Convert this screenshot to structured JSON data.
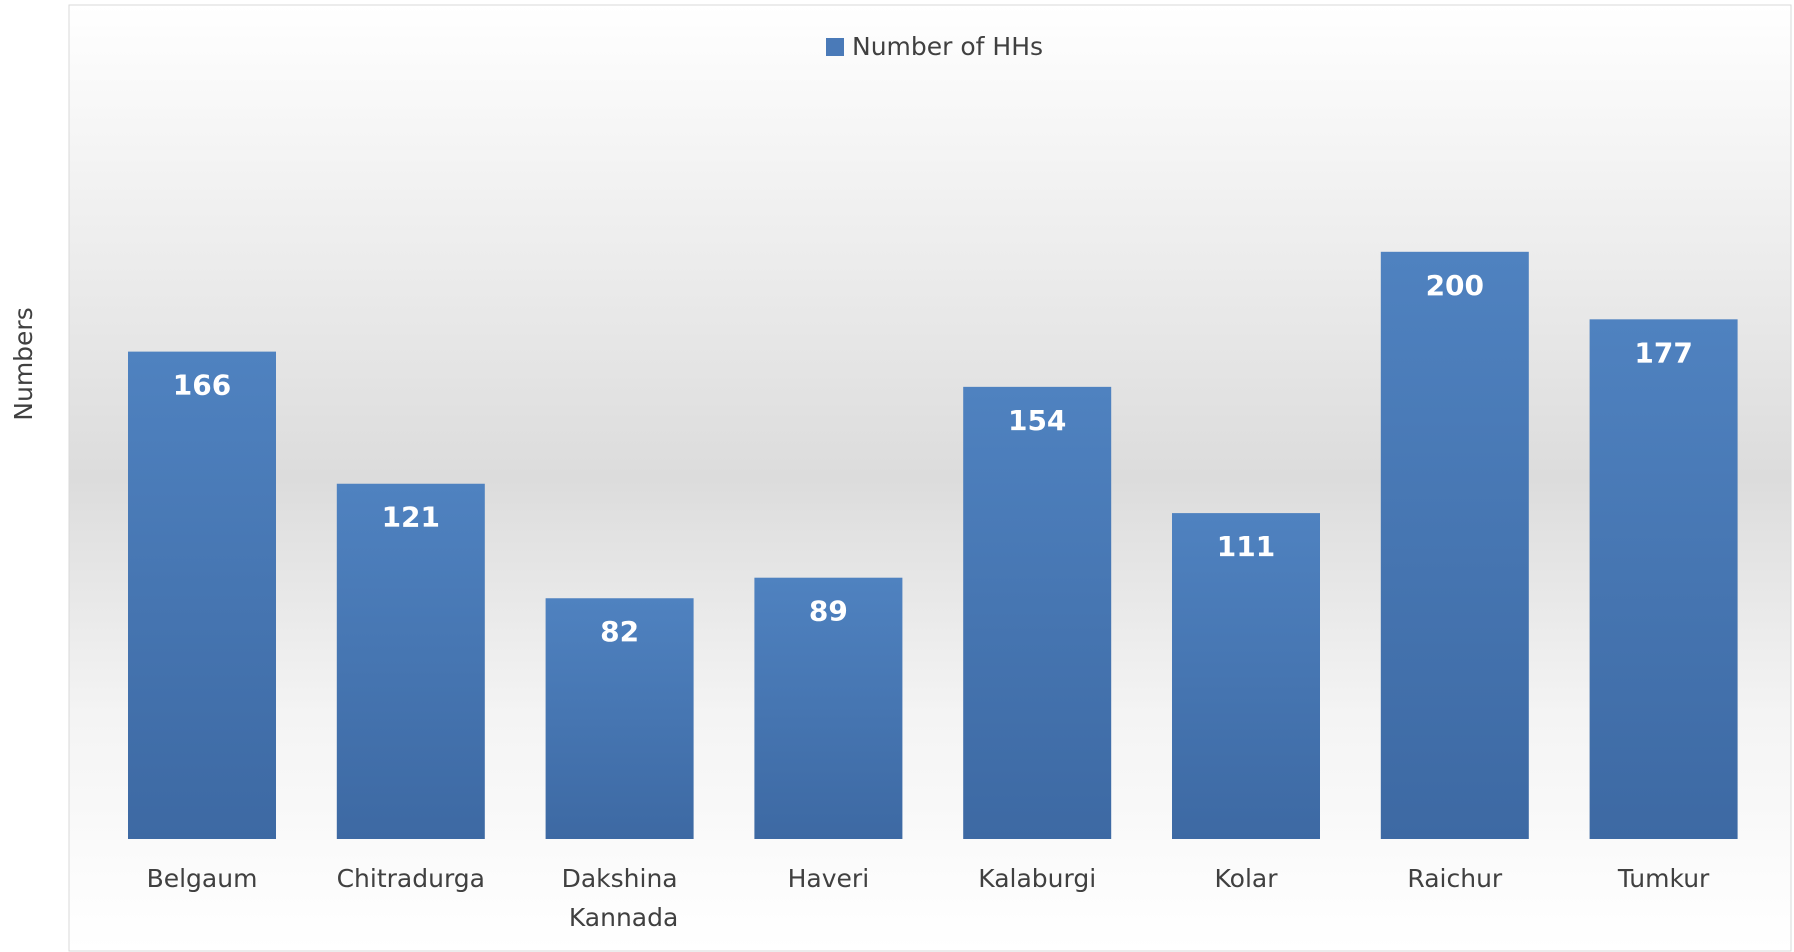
{
  "chart_data": {
    "type": "bar",
    "y_axis_label": "Numbers",
    "categories": [
      "Belgaum",
      "Chitradurga",
      "Dakshina Kannada",
      "Haveri",
      "Kalaburgi",
      "Kolar",
      "Raichur",
      "Tumkur"
    ],
    "series": [
      {
        "name": "Number of HHs",
        "color": "#4a7ab8",
        "values": [
          166,
          121,
          82,
          89,
          154,
          111,
          200,
          177
        ]
      }
    ],
    "ylim": [
      0,
      250
    ],
    "legend": "top"
  }
}
